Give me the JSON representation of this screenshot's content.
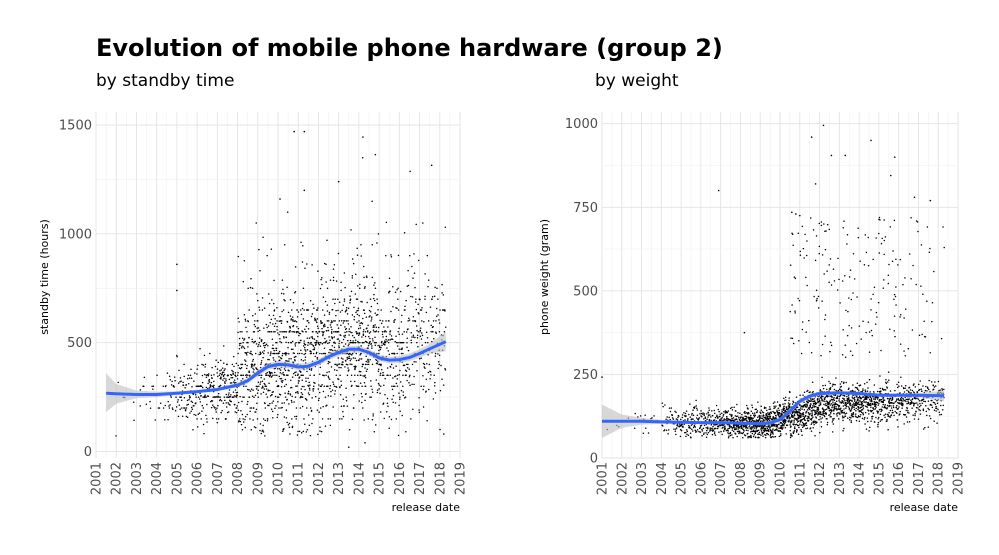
{
  "title": "Evolution of mobile phone hardware (group 2)",
  "colors": {
    "smooth": "#3366ff",
    "ribbon": "#bebebe",
    "points": "#000000",
    "grid": "#e0e0e0"
  },
  "chart_data": [
    {
      "type": "scatter",
      "subtitle": "by standby time",
      "xlabel": "release date",
      "ylabel": "standby time (hours)",
      "xlim": [
        2001,
        2019
      ],
      "ylim": [
        -30,
        1560
      ],
      "xticks": [
        "2001",
        "2002",
        "2003",
        "2004",
        "2005",
        "2006",
        "2007",
        "2008",
        "2009",
        "2010",
        "2011",
        "2012",
        "2013",
        "2014",
        "2015",
        "2016",
        "2017",
        "2018",
        "2019"
      ],
      "yticks": [
        0,
        500,
        1000,
        1500
      ],
      "grid": true,
      "smooth": {
        "x": [
          2001.5,
          2002,
          2003,
          2004,
          2005,
          2006,
          2007,
          2008,
          2008.5,
          2009,
          2009.5,
          2010,
          2010.5,
          2011,
          2011.5,
          2012,
          2012.5,
          2013,
          2013.5,
          2014,
          2014.5,
          2015,
          2015.5,
          2016,
          2016.5,
          2017,
          2017.5,
          2018.3
        ],
        "y": [
          268,
          265,
          262,
          262,
          268,
          275,
          285,
          305,
          325,
          360,
          390,
          400,
          398,
          388,
          392,
          410,
          435,
          455,
          470,
          470,
          455,
          430,
          420,
          422,
          432,
          450,
          472,
          505
        ],
        "lower": [
          180,
          220,
          245,
          250,
          260,
          268,
          278,
          295,
          312,
          345,
          375,
          385,
          383,
          373,
          377,
          395,
          420,
          440,
          455,
          455,
          440,
          415,
          405,
          405,
          415,
          430,
          450,
          460
        ],
        "upper": [
          360,
          310,
          280,
          275,
          277,
          282,
          292,
          315,
          338,
          375,
          405,
          415,
          413,
          403,
          407,
          425,
          450,
          470,
          485,
          485,
          470,
          445,
          435,
          440,
          450,
          470,
          495,
          550
        ]
      },
      "scatter": {
        "x_start": 2002.0,
        "x_end": 2018.3,
        "density": [
          [
            2002,
            0.3
          ],
          [
            2003,
            1
          ],
          [
            2004,
            2
          ],
          [
            2005,
            6
          ],
          [
            2006,
            9
          ],
          [
            2007,
            12
          ],
          [
            2008,
            16
          ],
          [
            2009,
            20
          ],
          [
            2010,
            22
          ],
          [
            2011,
            22
          ],
          [
            2012,
            20
          ],
          [
            2013,
            20
          ],
          [
            2014,
            20
          ],
          [
            2015,
            18
          ],
          [
            2016,
            14
          ],
          [
            2017,
            11
          ],
          [
            2018,
            8
          ]
        ],
        "outliers": [
          {
            "x": 2005.0,
            "y": 860
          },
          {
            "x": 2005.0,
            "y": 740
          },
          {
            "x": 2010.8,
            "y": 1470
          },
          {
            "x": 2011.3,
            "y": 1470
          },
          {
            "x": 2014.2,
            "y": 1445
          },
          {
            "x": 2017.6,
            "y": 1315
          },
          {
            "x": 2013.0,
            "y": 1240
          },
          {
            "x": 2011.3,
            "y": 1200
          },
          {
            "x": 2010.1,
            "y": 1160
          },
          {
            "x": 2013.5,
            "y": 20
          },
          {
            "x": 2014.3,
            "y": 40
          },
          {
            "x": 2018.2,
            "y": 80
          }
        ]
      }
    },
    {
      "type": "scatter",
      "subtitle": "by weight",
      "xlabel": "release date",
      "ylabel": "phone weight (gram)",
      "xlim": [
        2001,
        2019
      ],
      "ylim": [
        0,
        1035
      ],
      "xticks": [
        "2001",
        "2002",
        "2003",
        "2004",
        "2005",
        "2006",
        "2007",
        "2008",
        "2009",
        "2010",
        "2011",
        "2012",
        "2013",
        "2014",
        "2015",
        "2016",
        "2017",
        "2018",
        "2019"
      ],
      "yticks": [
        0,
        250,
        500,
        750,
        1000
      ],
      "grid": true,
      "smooth": {
        "x": [
          2001.0,
          2002,
          2003,
          2004,
          2005,
          2006,
          2007,
          2008,
          2009,
          2009.5,
          2010,
          2010.5,
          2011,
          2011.5,
          2012,
          2013,
          2014,
          2015,
          2016,
          2017,
          2018.3
        ],
        "y": [
          110,
          110,
          110,
          108,
          107,
          106,
          106,
          104,
          103,
          105,
          115,
          140,
          170,
          185,
          193,
          195,
          193,
          188,
          188,
          188,
          186
        ],
        "lower": [
          60,
          90,
          100,
          102,
          103,
          102,
          102,
          100,
          98,
          99,
          108,
          132,
          162,
          178,
          187,
          190,
          188,
          183,
          183,
          182,
          170
        ],
        "upper": [
          160,
          130,
          120,
          114,
          111,
          110,
          110,
          108,
          108,
          111,
          122,
          148,
          178,
          192,
          199,
          200,
          198,
          193,
          193,
          194,
          202
        ]
      },
      "scatter": {
        "x_start": 2001.0,
        "x_end": 2018.3,
        "density": [
          [
            2001,
            0.2
          ],
          [
            2002,
            0.5
          ],
          [
            2003,
            1
          ],
          [
            2004,
            3
          ],
          [
            2005,
            7
          ],
          [
            2006,
            10
          ],
          [
            2007,
            14
          ],
          [
            2008,
            20
          ],
          [
            2009,
            24
          ],
          [
            2010,
            26
          ],
          [
            2011,
            26
          ],
          [
            2012,
            24
          ],
          [
            2013,
            22
          ],
          [
            2014,
            22
          ],
          [
            2015,
            20
          ],
          [
            2016,
            16
          ],
          [
            2017,
            12
          ],
          [
            2018,
            8
          ]
        ],
        "outliers": [
          {
            "x": 2012.2,
            "y": 995
          },
          {
            "x": 2011.6,
            "y": 960
          },
          {
            "x": 2014.6,
            "y": 950
          },
          {
            "x": 2013.3,
            "y": 905
          },
          {
            "x": 2012.6,
            "y": 905
          },
          {
            "x": 2015.8,
            "y": 900
          },
          {
            "x": 2015.6,
            "y": 845
          },
          {
            "x": 2011.8,
            "y": 820
          },
          {
            "x": 2006.9,
            "y": 800
          },
          {
            "x": 2016.8,
            "y": 780
          },
          {
            "x": 2017.6,
            "y": 770
          },
          {
            "x": 2010.6,
            "y": 735
          },
          {
            "x": 2010.8,
            "y": 730
          },
          {
            "x": 2011.0,
            "y": 725
          },
          {
            "x": 2008.2,
            "y": 375
          },
          {
            "x": 2001.0,
            "y": 242
          }
        ]
      }
    }
  ]
}
